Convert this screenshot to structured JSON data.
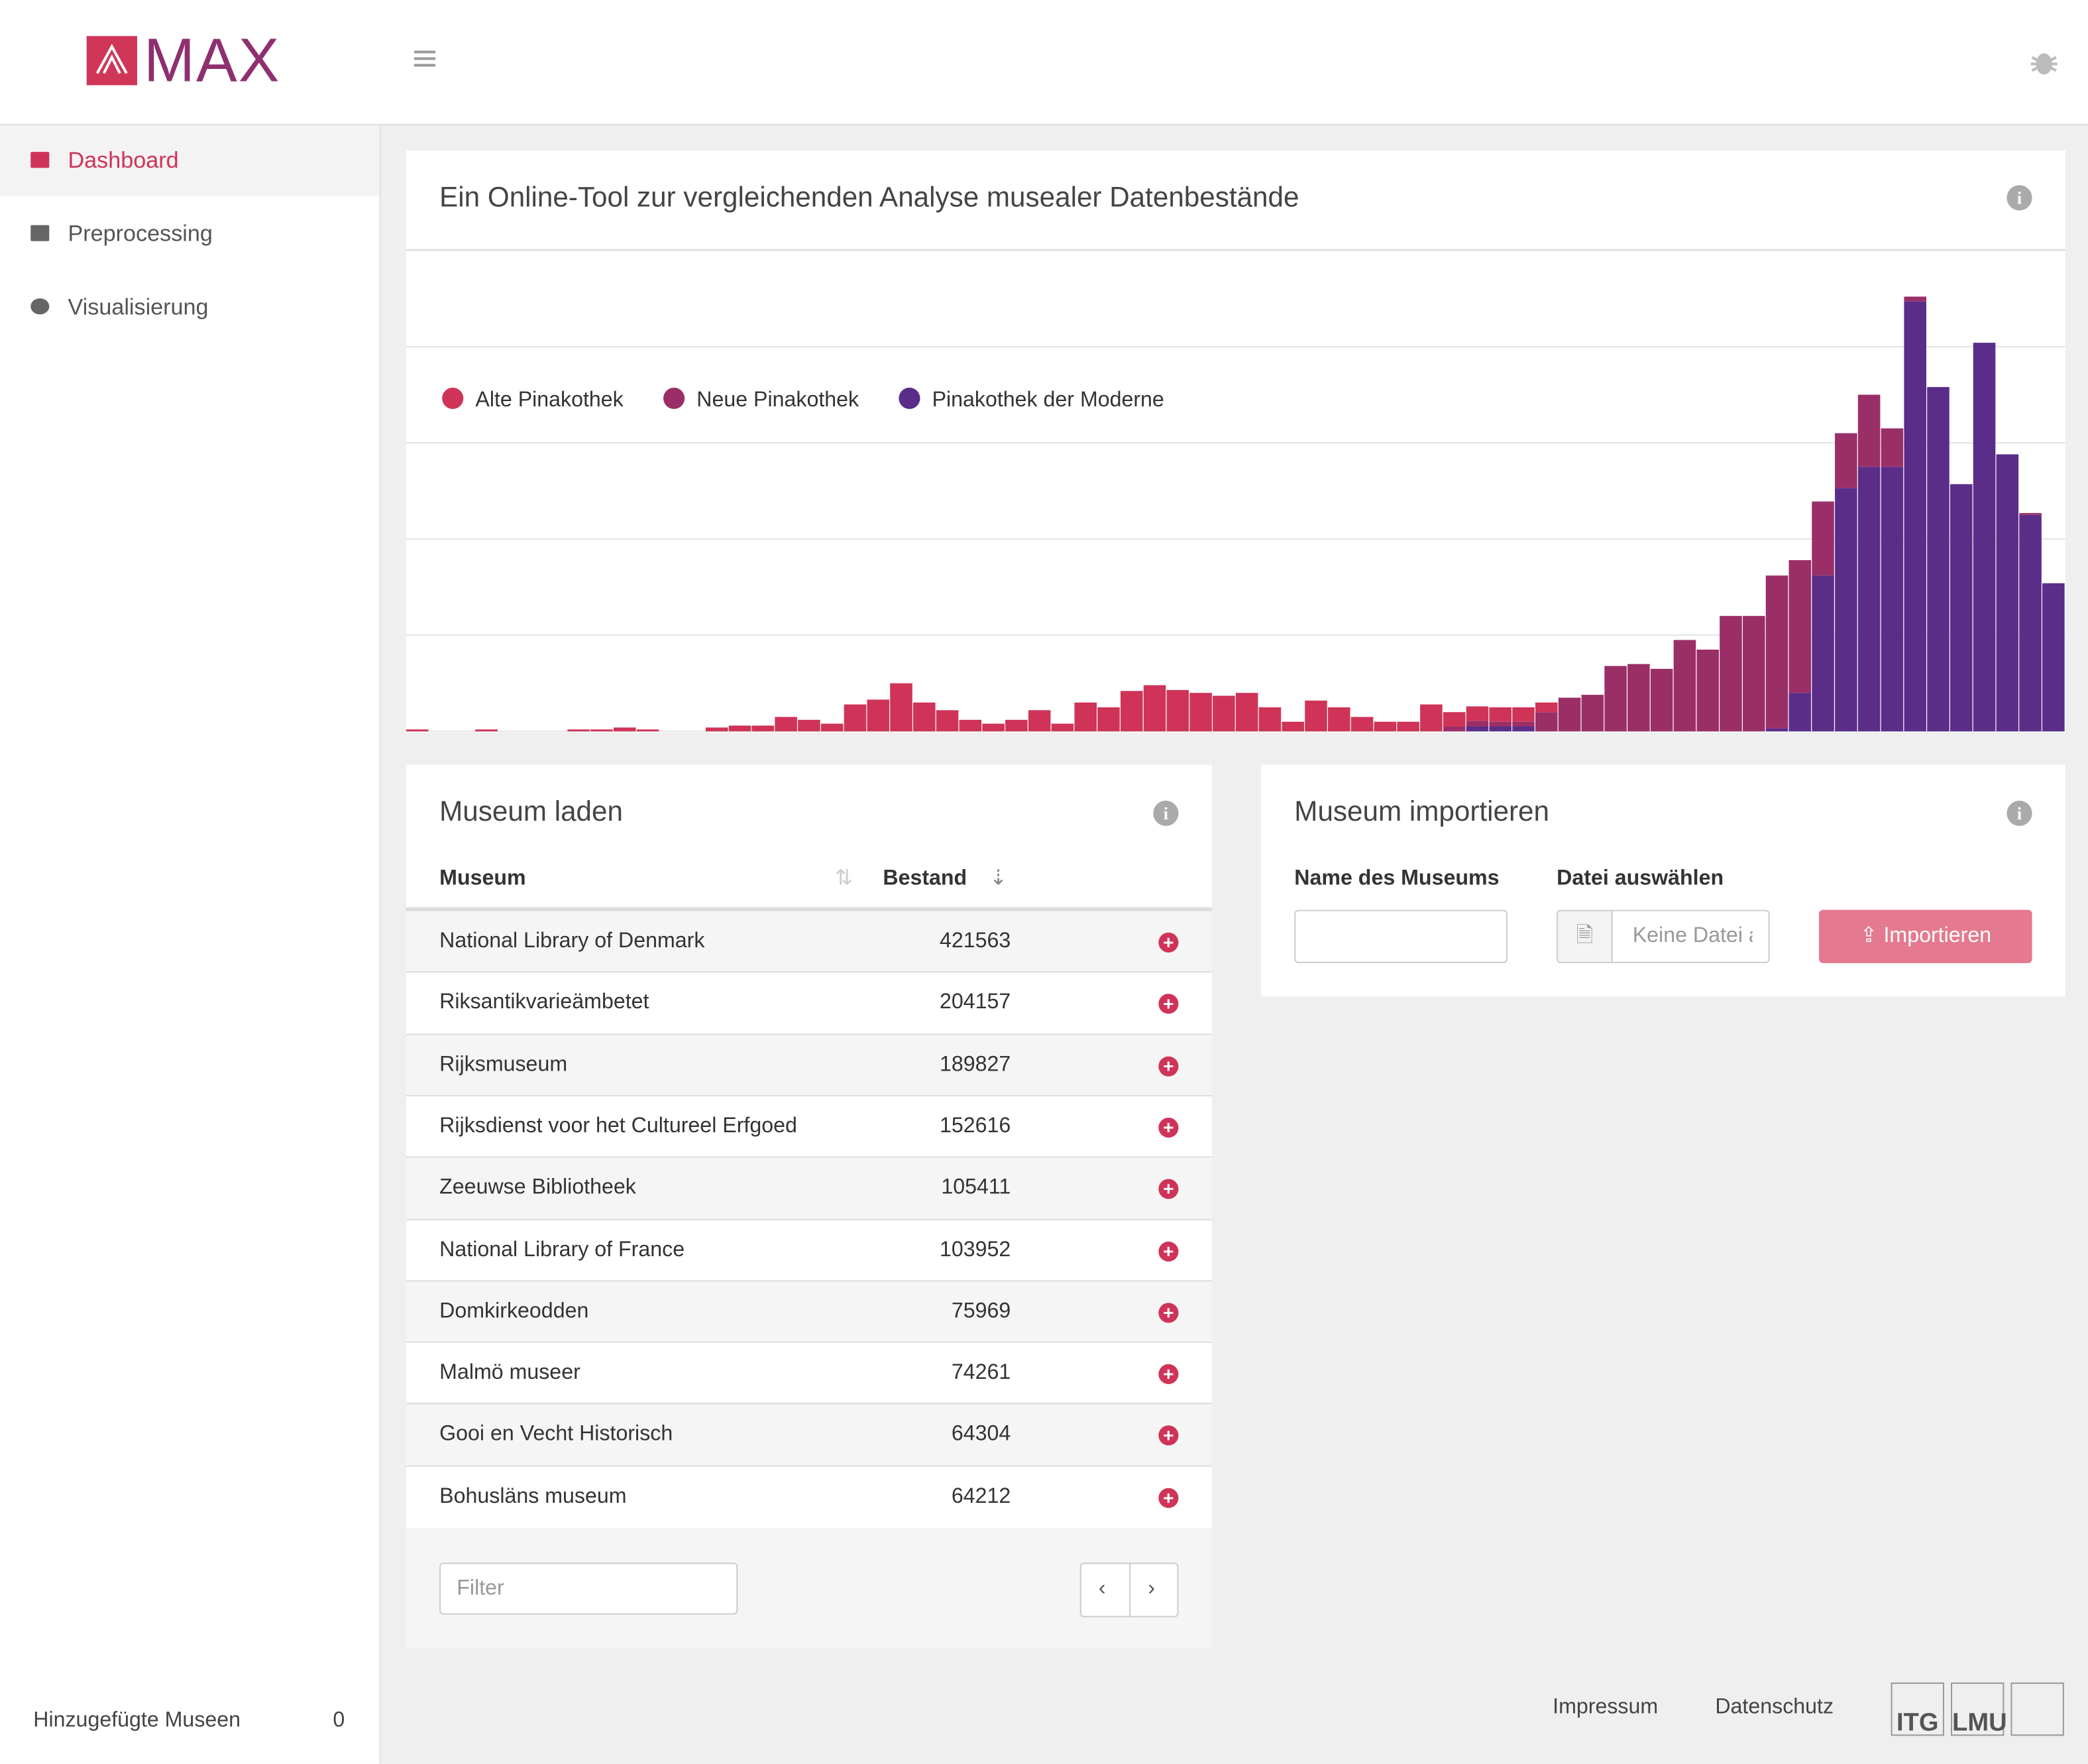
{
  "header": {
    "logo": "MAX"
  },
  "sidebar": {
    "nav": [
      "Dashboard",
      "Preprocessing",
      "Visualisierung"
    ],
    "footer_label": "Hinzugefügte Museen",
    "footer_count": 0
  },
  "chart_data": {
    "type": "bar",
    "stacked": true,
    "title": "Ein Online-Tool zur vergleichenden Analyse musealer Datenbestände",
    "legend": "top-left",
    "grid": true,
    "ylim": [
      0,
      5
    ],
    "yticks": [
      0,
      1,
      2,
      3,
      4,
      5
    ],
    "series": [
      {
        "name": "Alte Pinakothek",
        "color": "#cf3458",
        "values": [
          0.02,
          0,
          0,
          0.02,
          0,
          0,
          0,
          0.02,
          0.02,
          0.04,
          0.02,
          0,
          0,
          0.04,
          0.06,
          0.06,
          0.15,
          0.12,
          0.08,
          0.28,
          0.33,
          0.5,
          0.3,
          0.22,
          0.12,
          0.08,
          0.12,
          0.22,
          0.08,
          0.3,
          0.25,
          0.42,
          0.48,
          0.43,
          0.4,
          0.37,
          0.4,
          0.25,
          0.1,
          0.32,
          0.25,
          0.15,
          0.1,
          0.1,
          0.28,
          0.15,
          0.15,
          0.15,
          0.15,
          0.1,
          0,
          0,
          0,
          0,
          0,
          0,
          0,
          0,
          0,
          0,
          0,
          0,
          0,
          0,
          0,
          0,
          0,
          0,
          0,
          0,
          0,
          0
        ]
      },
      {
        "name": "Neue Pinakothek",
        "color": "#9a2f68",
        "values": [
          0,
          0,
          0,
          0,
          0,
          0,
          0,
          0,
          0,
          0,
          0,
          0,
          0,
          0,
          0,
          0,
          0,
          0,
          0,
          0,
          0,
          0,
          0,
          0,
          0,
          0,
          0,
          0,
          0,
          0,
          0,
          0,
          0,
          0,
          0,
          0,
          0,
          0,
          0,
          0,
          0,
          0,
          0,
          0,
          0,
          0.05,
          0.06,
          0.05,
          0.05,
          0.2,
          0.35,
          0.38,
          0.68,
          0.7,
          0.65,
          0.95,
          0.85,
          1.2,
          1.2,
          1.59,
          1.38,
          0.77,
          0.57,
          0.75,
          0.4,
          0.05,
          0,
          0,
          0,
          0,
          0.02,
          0
        ]
      },
      {
        "name": "Pinakothek der Moderne",
        "color": "#5a2d89",
        "values": [
          0,
          0,
          0,
          0,
          0,
          0,
          0,
          0,
          0,
          0,
          0,
          0,
          0,
          0,
          0,
          0,
          0,
          0,
          0,
          0,
          0,
          0,
          0,
          0,
          0,
          0,
          0,
          0,
          0,
          0,
          0,
          0,
          0,
          0,
          0,
          0,
          0,
          0,
          0,
          0,
          0,
          0,
          0,
          0,
          0,
          0,
          0.05,
          0.05,
          0.05,
          0,
          0,
          0,
          0,
          0,
          0,
          0,
          0,
          0,
          0,
          0.03,
          0.4,
          1.62,
          2.53,
          2.75,
          2.75,
          4.47,
          3.58,
          2.57,
          4.04,
          2.88,
          2.25,
          1.54
        ]
      }
    ]
  },
  "load": {
    "title": "Museum laden",
    "columns": [
      "Museum",
      "Bestand"
    ],
    "rows": [
      [
        "National Library of Denmark",
        421563
      ],
      [
        "Riksantikvarieämbetet",
        204157
      ],
      [
        "Rijksmuseum",
        189827
      ],
      [
        "Rijksdienst voor het Cultureel Erfgoed",
        152616
      ],
      [
        "Zeeuwse Bibliotheek",
        105411
      ],
      [
        "National Library of France",
        103952
      ],
      [
        "Domkirkeodden",
        75969
      ],
      [
        "Malmö museer",
        74261
      ],
      [
        "Gooi en Vecht Historisch",
        64304
      ],
      [
        "Bohusläns museum",
        64212
      ]
    ],
    "filter_placeholder": "Filter"
  },
  "import": {
    "title": "Museum importieren",
    "name_label": "Name des Museums",
    "file_label": "Datei auswählen",
    "file_placeholder": "Keine Datei ausgewählt",
    "button": "Importieren"
  },
  "footer": {
    "links": [
      "Impressum",
      "Datenschutz"
    ],
    "logos": [
      "ITG",
      "LMU"
    ]
  }
}
